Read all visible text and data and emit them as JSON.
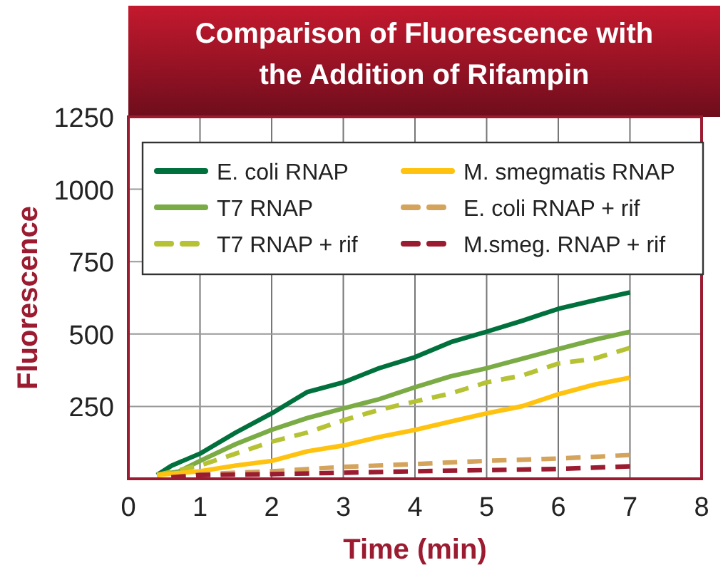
{
  "chart_data": {
    "type": "line",
    "title": "Comparison of Fluorescence with the Addition of Rifampin",
    "xlabel": "Time (min)",
    "ylabel": "Fluorescence",
    "xlim": [
      0,
      8
    ],
    "xticks": [
      0,
      1,
      2,
      3,
      4,
      5,
      6,
      7,
      8
    ],
    "ylim": [
      0,
      1250
    ],
    "yticks": [
      {
        "value": 0,
        "label": null
      },
      250,
      500,
      750,
      1000,
      1250
    ],
    "grid": true,
    "legend": "top",
    "marker": "none",
    "series": [
      {
        "name": "E. coli RNAP",
        "color": "#00703c",
        "line_style": "solid",
        "x": [
          0.4,
          0.6,
          1,
          1.5,
          2,
          2.5,
          3,
          3.5,
          4,
          4.5,
          5,
          5.5,
          6,
          6.5,
          7
        ],
        "values": [
          13,
          45,
          87,
          160,
          226,
          300,
          333,
          382,
          420,
          472,
          508,
          546,
          587,
          616,
          644
        ]
      },
      {
        "name": "T7 RNAP",
        "color": "#7aab45",
        "line_style": "solid",
        "x": [
          0.4,
          0.7,
          1,
          1.5,
          2,
          2.5,
          3,
          3.5,
          4,
          4.5,
          5,
          5.5,
          6,
          6.5,
          7
        ],
        "values": [
          13,
          25,
          62,
          120,
          169,
          210,
          243,
          275,
          316,
          354,
          382,
          415,
          448,
          480,
          508
        ]
      },
      {
        "name": "T7 RNAP + rif",
        "color": "#b5c234",
        "line_style": "dashed",
        "x": [
          0.4,
          1,
          1.5,
          2,
          2.5,
          3,
          3.5,
          4,
          4.5,
          5,
          5.5,
          6,
          6.5,
          7
        ],
        "values": [
          13,
          46,
          87,
          128,
          160,
          202,
          238,
          267,
          295,
          333,
          357,
          398,
          415,
          452
        ]
      },
      {
        "name": "M. smegmatis RNAP",
        "color": "#ffc20e",
        "line_style": "solid",
        "x": [
          0.4,
          1,
          1.5,
          2,
          2.5,
          3,
          3.5,
          4,
          4.5,
          5,
          5.5,
          6,
          6.5,
          7
        ],
        "values": [
          13,
          26,
          46,
          62,
          95,
          115,
          144,
          169,
          198,
          226,
          251,
          292,
          325,
          349
        ]
      },
      {
        "name": "E. coli RNAP + rif",
        "color": "#d4a45c",
        "line_style": "dashed",
        "x": [
          0.6,
          1,
          2,
          3,
          4,
          5,
          6,
          7
        ],
        "values": [
          5,
          16,
          26,
          41,
          51,
          62,
          70,
          82
        ]
      },
      {
        "name": "M.smeg. RNAP + rif",
        "color": "#9b1b30",
        "line_style": "dashed",
        "x": [
          0.6,
          1,
          2,
          3,
          4,
          5,
          6,
          7
        ],
        "values": [
          5,
          13,
          16,
          21,
          26,
          30,
          34,
          43
        ]
      }
    ]
  }
}
